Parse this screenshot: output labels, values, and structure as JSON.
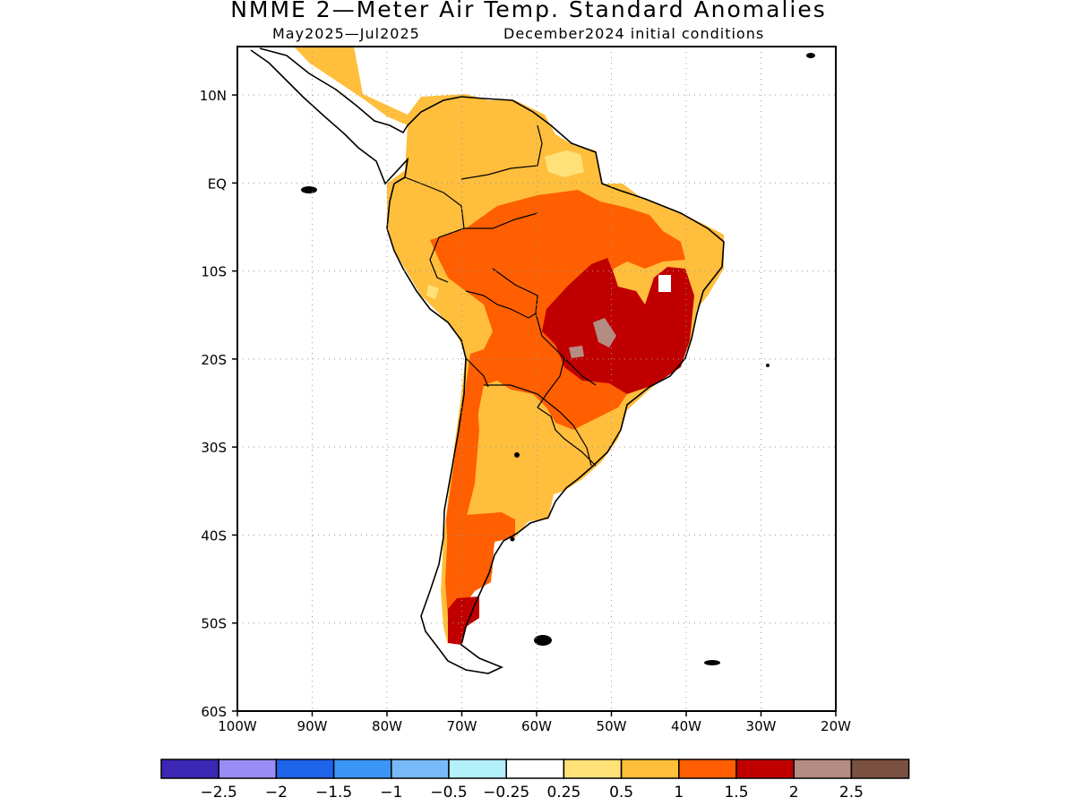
{
  "header": {
    "title": "NMME 2—Meter Air Temp. Standard Anomalies",
    "period": "May2025—Jul2025",
    "initial_conditions": "December2024 initial conditions"
  },
  "map": {
    "lon_ticks": [
      "100W",
      "90W",
      "80W",
      "70W",
      "60W",
      "50W",
      "40W",
      "30W",
      "20W"
    ],
    "lat_ticks": [
      "10N",
      "EQ",
      "10S",
      "20S",
      "30S",
      "40S",
      "50S",
      "60S"
    ],
    "lon_range": [
      -100,
      -20
    ],
    "lat_range": [
      -60,
      15.5
    ],
    "gridlines": "dotted",
    "gridline_lons": [
      -90,
      -80,
      -70,
      -60,
      -50,
      -40,
      -30
    ],
    "gridline_lats": [
      10,
      0,
      -10,
      -20,
      -30,
      -40,
      -50
    ],
    "anomaly_regions": [
      {
        "class": "0.5 to 1",
        "region": "most of northern South America, Argentina, coastal Brazil"
      },
      {
        "class": "1 to 1.5",
        "region": "central Brazil, Bolivia, Paraguay, Andes, Patagonia"
      },
      {
        "class": "1.5 to 2",
        "region": "east-central Brazil, southern Patagonia"
      },
      {
        "class": "2 to 2.5",
        "region": "small spots in central Brazil"
      },
      {
        "class": "0.25 to 0.5",
        "region": "small patches near Guianas"
      }
    ]
  },
  "colorbar": {
    "labels": [
      "−2.5",
      "−2",
      "−1.5",
      "−1",
      "−0.5",
      "−0.25",
      "0.25",
      "0.5",
      "1",
      "1.5",
      "2",
      "2.5"
    ],
    "colors": [
      "#3c28b4",
      "#9b8cf5",
      "#1e64eb",
      "#3c96f5",
      "#78b9fa",
      "#b4f0fa",
      "#ffffff",
      "#ffe178",
      "#ffbe3c",
      "#ff5f00",
      "#c00000",
      "#b48c82",
      "#7a5040"
    ]
  }
}
